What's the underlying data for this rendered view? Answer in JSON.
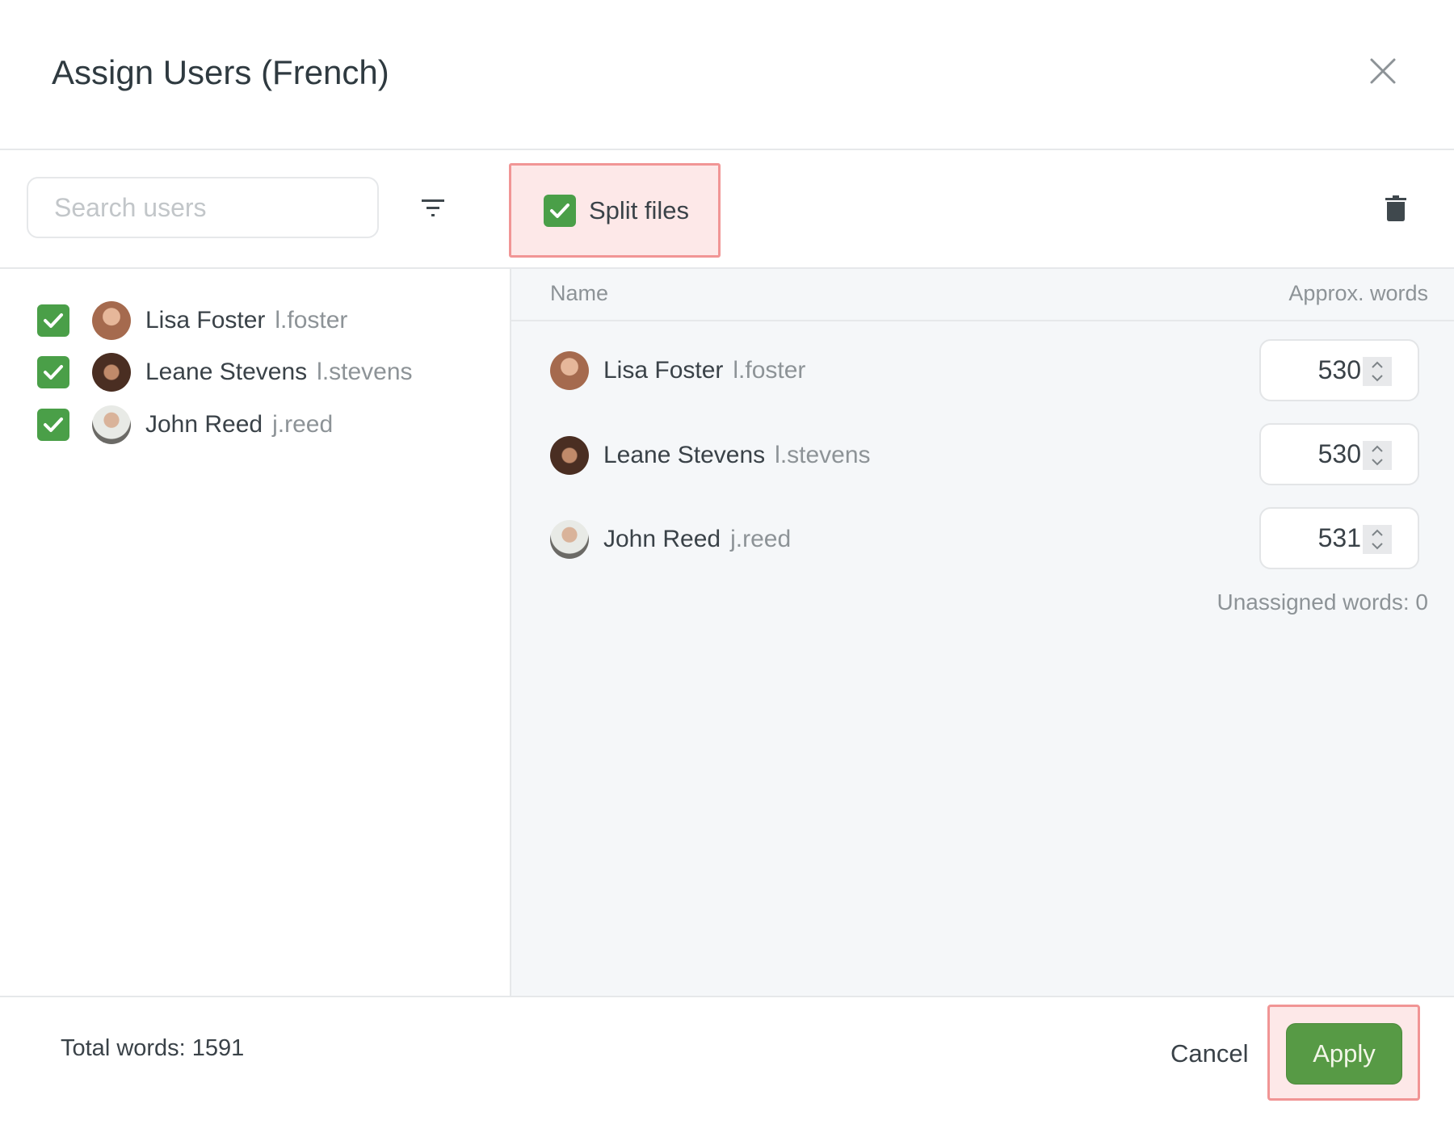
{
  "dialog": {
    "title": "Assign Users (French)"
  },
  "toolbar": {
    "search_placeholder": "Search users",
    "search_value": "",
    "split_files_label": "Split files",
    "split_files_checked": true
  },
  "users": [
    {
      "name": "Lisa Foster",
      "handle": "l.foster",
      "checked": true,
      "avatar_color": "#a56a4e"
    },
    {
      "name": "Leane Stevens",
      "handle": "l.stevens",
      "checked": true,
      "avatar_color": "#5a3a2a"
    },
    {
      "name": "John Reed",
      "handle": "j.reed",
      "checked": true,
      "avatar_color": "#8c8a86"
    }
  ],
  "table": {
    "columns": [
      "Name",
      "Approx. words"
    ],
    "rows": [
      {
        "name": "Lisa Foster",
        "handle": "l.foster",
        "words": "530"
      },
      {
        "name": "Leane Stevens",
        "handle": "l.stevens",
        "words": "530"
      },
      {
        "name": "John Reed",
        "handle": "j.reed",
        "words": "531"
      }
    ],
    "unassigned": "Unassigned words: 0"
  },
  "footer": {
    "total": "Total words: 1591",
    "cancel_label": "Cancel",
    "apply_label": "Apply"
  },
  "colors": {
    "accent": "#4a9f48",
    "apply": "#579a45",
    "highlight": "#f19595",
    "panel": "#f5f7f9"
  },
  "icons": [
    "close-icon",
    "filter-icon",
    "checkbox-checked-icon",
    "trash-icon",
    "spinner-icon"
  ]
}
